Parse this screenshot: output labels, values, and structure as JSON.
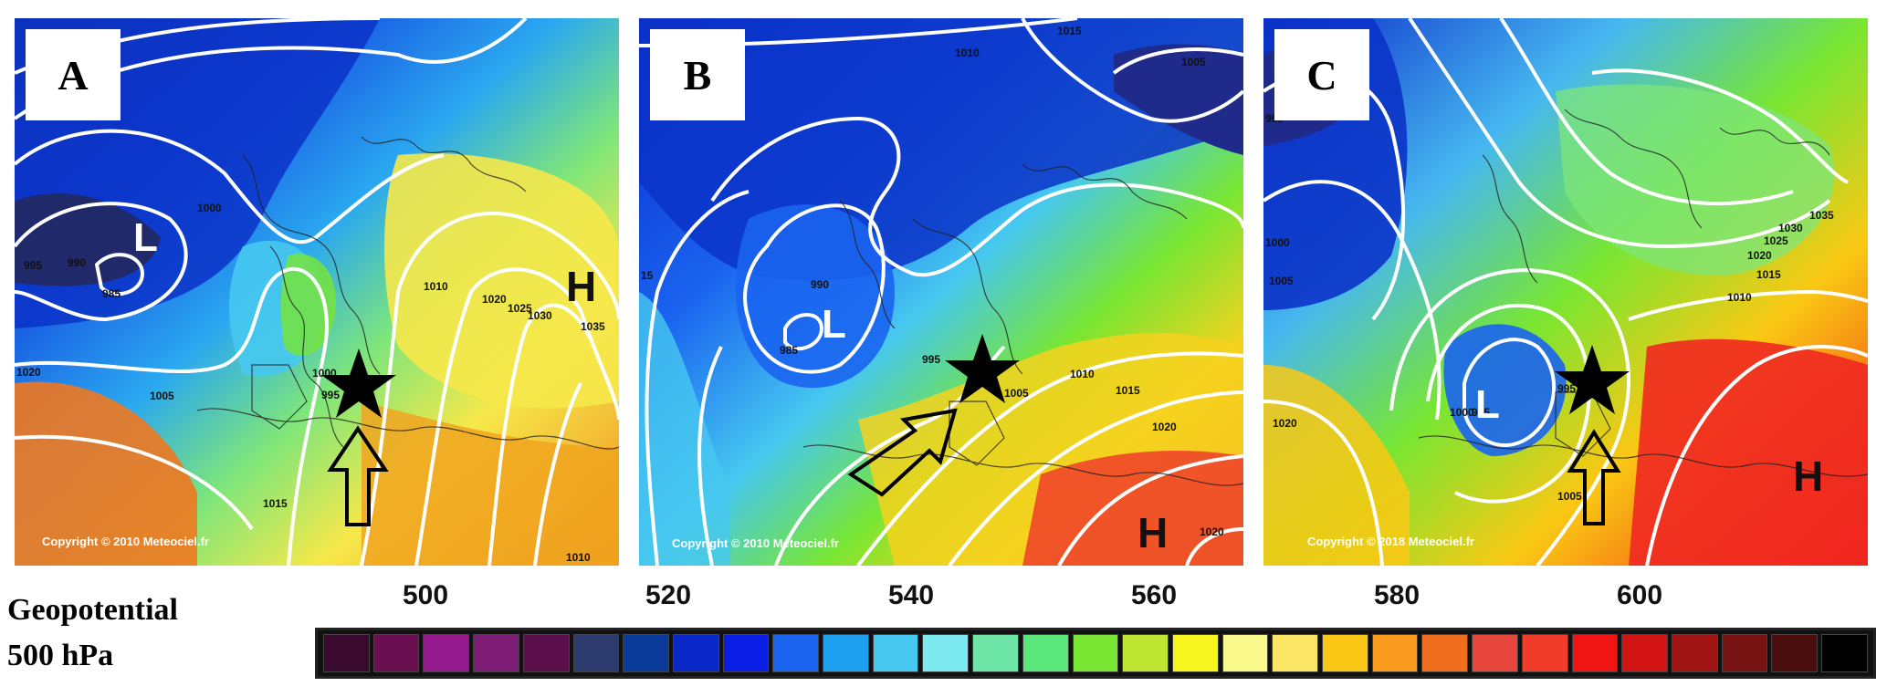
{
  "panels": [
    {
      "label": "A",
      "copyright": "Copyright © 2010 Meteociel.fr",
      "pressure_labels": [
        "1000",
        "995",
        "990",
        "985",
        "1020",
        "1005",
        "1015",
        "1010",
        "1020",
        "1025",
        "1030",
        "1035",
        "1000",
        "995",
        "1010"
      ],
      "letters": [
        "L",
        "H"
      ]
    },
    {
      "label": "B",
      "copyright": "Copyright © 2010 Meteociel.fr",
      "pressure_labels": [
        "1015",
        "1010",
        "1005",
        "990",
        "985",
        "15",
        "995",
        "1005",
        "1010",
        "1015",
        "1020",
        "1020"
      ],
      "letters": [
        "L",
        "H"
      ]
    },
    {
      "label": "C",
      "copyright": "Copyright © 2018 Meteociel.fr",
      "pressure_labels": [
        "995",
        "1000",
        "1005",
        "1035",
        "1030",
        "1025",
        "1020",
        "1015",
        "1010",
        "1020",
        "1000",
        "995",
        "995",
        "1005"
      ],
      "letters": [
        "L",
        "H"
      ]
    }
  ],
  "legend": {
    "title_line1": "Geopotential",
    "title_line2": "500 hPa",
    "ticks": [
      "500",
      "520",
      "540",
      "560",
      "580",
      "600"
    ],
    "colors": [
      "#3a0a2e",
      "#6a1050",
      "#951a8e",
      "#7e1d76",
      "#5a0f4a",
      "#2c3a6e",
      "#0a3a9a",
      "#0a28c8",
      "#0a1ee6",
      "#1a64f0",
      "#1ea0f0",
      "#46c8f0",
      "#7ceaf0",
      "#6ee6a8",
      "#5ae67a",
      "#78e632",
      "#bee632",
      "#f6f61e",
      "#fafa8c",
      "#fae664",
      "#fac814",
      "#fa9a1e",
      "#f06e1e",
      "#e6463c",
      "#f03c28",
      "#f01414",
      "#d21414",
      "#a01414",
      "#781414",
      "#4a0e0e",
      "#000000"
    ]
  }
}
